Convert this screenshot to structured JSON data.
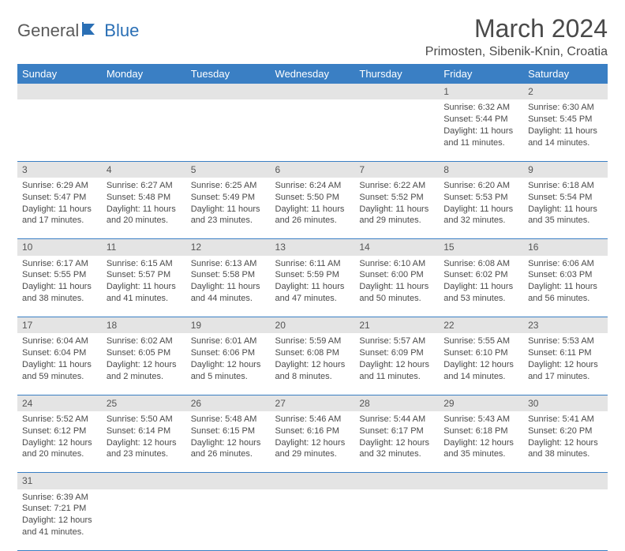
{
  "brand": {
    "part1": "General",
    "part2": "Blue"
  },
  "title": "March 2024",
  "location": "Primosten, Sibenik-Knin, Croatia",
  "colors": {
    "header_bg": "#3a7fc4",
    "header_text": "#ffffff",
    "daynum_bg": "#e4e4e4",
    "rule": "#3a7fc4",
    "brand_accent": "#2a6fb5",
    "text": "#4a4a4a"
  },
  "weekdays": [
    "Sunday",
    "Monday",
    "Tuesday",
    "Wednesday",
    "Thursday",
    "Friday",
    "Saturday"
  ],
  "weeks": [
    [
      null,
      null,
      null,
      null,
      null,
      {
        "d": "1",
        "sr": "Sunrise: 6:32 AM",
        "ss": "Sunset: 5:44 PM",
        "dl1": "Daylight: 11 hours",
        "dl2": "and 11 minutes."
      },
      {
        "d": "2",
        "sr": "Sunrise: 6:30 AM",
        "ss": "Sunset: 5:45 PM",
        "dl1": "Daylight: 11 hours",
        "dl2": "and 14 minutes."
      }
    ],
    [
      {
        "d": "3",
        "sr": "Sunrise: 6:29 AM",
        "ss": "Sunset: 5:47 PM",
        "dl1": "Daylight: 11 hours",
        "dl2": "and 17 minutes."
      },
      {
        "d": "4",
        "sr": "Sunrise: 6:27 AM",
        "ss": "Sunset: 5:48 PM",
        "dl1": "Daylight: 11 hours",
        "dl2": "and 20 minutes."
      },
      {
        "d": "5",
        "sr": "Sunrise: 6:25 AM",
        "ss": "Sunset: 5:49 PM",
        "dl1": "Daylight: 11 hours",
        "dl2": "and 23 minutes."
      },
      {
        "d": "6",
        "sr": "Sunrise: 6:24 AM",
        "ss": "Sunset: 5:50 PM",
        "dl1": "Daylight: 11 hours",
        "dl2": "and 26 minutes."
      },
      {
        "d": "7",
        "sr": "Sunrise: 6:22 AM",
        "ss": "Sunset: 5:52 PM",
        "dl1": "Daylight: 11 hours",
        "dl2": "and 29 minutes."
      },
      {
        "d": "8",
        "sr": "Sunrise: 6:20 AM",
        "ss": "Sunset: 5:53 PM",
        "dl1": "Daylight: 11 hours",
        "dl2": "and 32 minutes."
      },
      {
        "d": "9",
        "sr": "Sunrise: 6:18 AM",
        "ss": "Sunset: 5:54 PM",
        "dl1": "Daylight: 11 hours",
        "dl2": "and 35 minutes."
      }
    ],
    [
      {
        "d": "10",
        "sr": "Sunrise: 6:17 AM",
        "ss": "Sunset: 5:55 PM",
        "dl1": "Daylight: 11 hours",
        "dl2": "and 38 minutes."
      },
      {
        "d": "11",
        "sr": "Sunrise: 6:15 AM",
        "ss": "Sunset: 5:57 PM",
        "dl1": "Daylight: 11 hours",
        "dl2": "and 41 minutes."
      },
      {
        "d": "12",
        "sr": "Sunrise: 6:13 AM",
        "ss": "Sunset: 5:58 PM",
        "dl1": "Daylight: 11 hours",
        "dl2": "and 44 minutes."
      },
      {
        "d": "13",
        "sr": "Sunrise: 6:11 AM",
        "ss": "Sunset: 5:59 PM",
        "dl1": "Daylight: 11 hours",
        "dl2": "and 47 minutes."
      },
      {
        "d": "14",
        "sr": "Sunrise: 6:10 AM",
        "ss": "Sunset: 6:00 PM",
        "dl1": "Daylight: 11 hours",
        "dl2": "and 50 minutes."
      },
      {
        "d": "15",
        "sr": "Sunrise: 6:08 AM",
        "ss": "Sunset: 6:02 PM",
        "dl1": "Daylight: 11 hours",
        "dl2": "and 53 minutes."
      },
      {
        "d": "16",
        "sr": "Sunrise: 6:06 AM",
        "ss": "Sunset: 6:03 PM",
        "dl1": "Daylight: 11 hours",
        "dl2": "and 56 minutes."
      }
    ],
    [
      {
        "d": "17",
        "sr": "Sunrise: 6:04 AM",
        "ss": "Sunset: 6:04 PM",
        "dl1": "Daylight: 11 hours",
        "dl2": "and 59 minutes."
      },
      {
        "d": "18",
        "sr": "Sunrise: 6:02 AM",
        "ss": "Sunset: 6:05 PM",
        "dl1": "Daylight: 12 hours",
        "dl2": "and 2 minutes."
      },
      {
        "d": "19",
        "sr": "Sunrise: 6:01 AM",
        "ss": "Sunset: 6:06 PM",
        "dl1": "Daylight: 12 hours",
        "dl2": "and 5 minutes."
      },
      {
        "d": "20",
        "sr": "Sunrise: 5:59 AM",
        "ss": "Sunset: 6:08 PM",
        "dl1": "Daylight: 12 hours",
        "dl2": "and 8 minutes."
      },
      {
        "d": "21",
        "sr": "Sunrise: 5:57 AM",
        "ss": "Sunset: 6:09 PM",
        "dl1": "Daylight: 12 hours",
        "dl2": "and 11 minutes."
      },
      {
        "d": "22",
        "sr": "Sunrise: 5:55 AM",
        "ss": "Sunset: 6:10 PM",
        "dl1": "Daylight: 12 hours",
        "dl2": "and 14 minutes."
      },
      {
        "d": "23",
        "sr": "Sunrise: 5:53 AM",
        "ss": "Sunset: 6:11 PM",
        "dl1": "Daylight: 12 hours",
        "dl2": "and 17 minutes."
      }
    ],
    [
      {
        "d": "24",
        "sr": "Sunrise: 5:52 AM",
        "ss": "Sunset: 6:12 PM",
        "dl1": "Daylight: 12 hours",
        "dl2": "and 20 minutes."
      },
      {
        "d": "25",
        "sr": "Sunrise: 5:50 AM",
        "ss": "Sunset: 6:14 PM",
        "dl1": "Daylight: 12 hours",
        "dl2": "and 23 minutes."
      },
      {
        "d": "26",
        "sr": "Sunrise: 5:48 AM",
        "ss": "Sunset: 6:15 PM",
        "dl1": "Daylight: 12 hours",
        "dl2": "and 26 minutes."
      },
      {
        "d": "27",
        "sr": "Sunrise: 5:46 AM",
        "ss": "Sunset: 6:16 PM",
        "dl1": "Daylight: 12 hours",
        "dl2": "and 29 minutes."
      },
      {
        "d": "28",
        "sr": "Sunrise: 5:44 AM",
        "ss": "Sunset: 6:17 PM",
        "dl1": "Daylight: 12 hours",
        "dl2": "and 32 minutes."
      },
      {
        "d": "29",
        "sr": "Sunrise: 5:43 AM",
        "ss": "Sunset: 6:18 PM",
        "dl1": "Daylight: 12 hours",
        "dl2": "and 35 minutes."
      },
      {
        "d": "30",
        "sr": "Sunrise: 5:41 AM",
        "ss": "Sunset: 6:20 PM",
        "dl1": "Daylight: 12 hours",
        "dl2": "and 38 minutes."
      }
    ],
    [
      {
        "d": "31",
        "sr": "Sunrise: 6:39 AM",
        "ss": "Sunset: 7:21 PM",
        "dl1": "Daylight: 12 hours",
        "dl2": "and 41 minutes."
      },
      null,
      null,
      null,
      null,
      null,
      null
    ]
  ]
}
